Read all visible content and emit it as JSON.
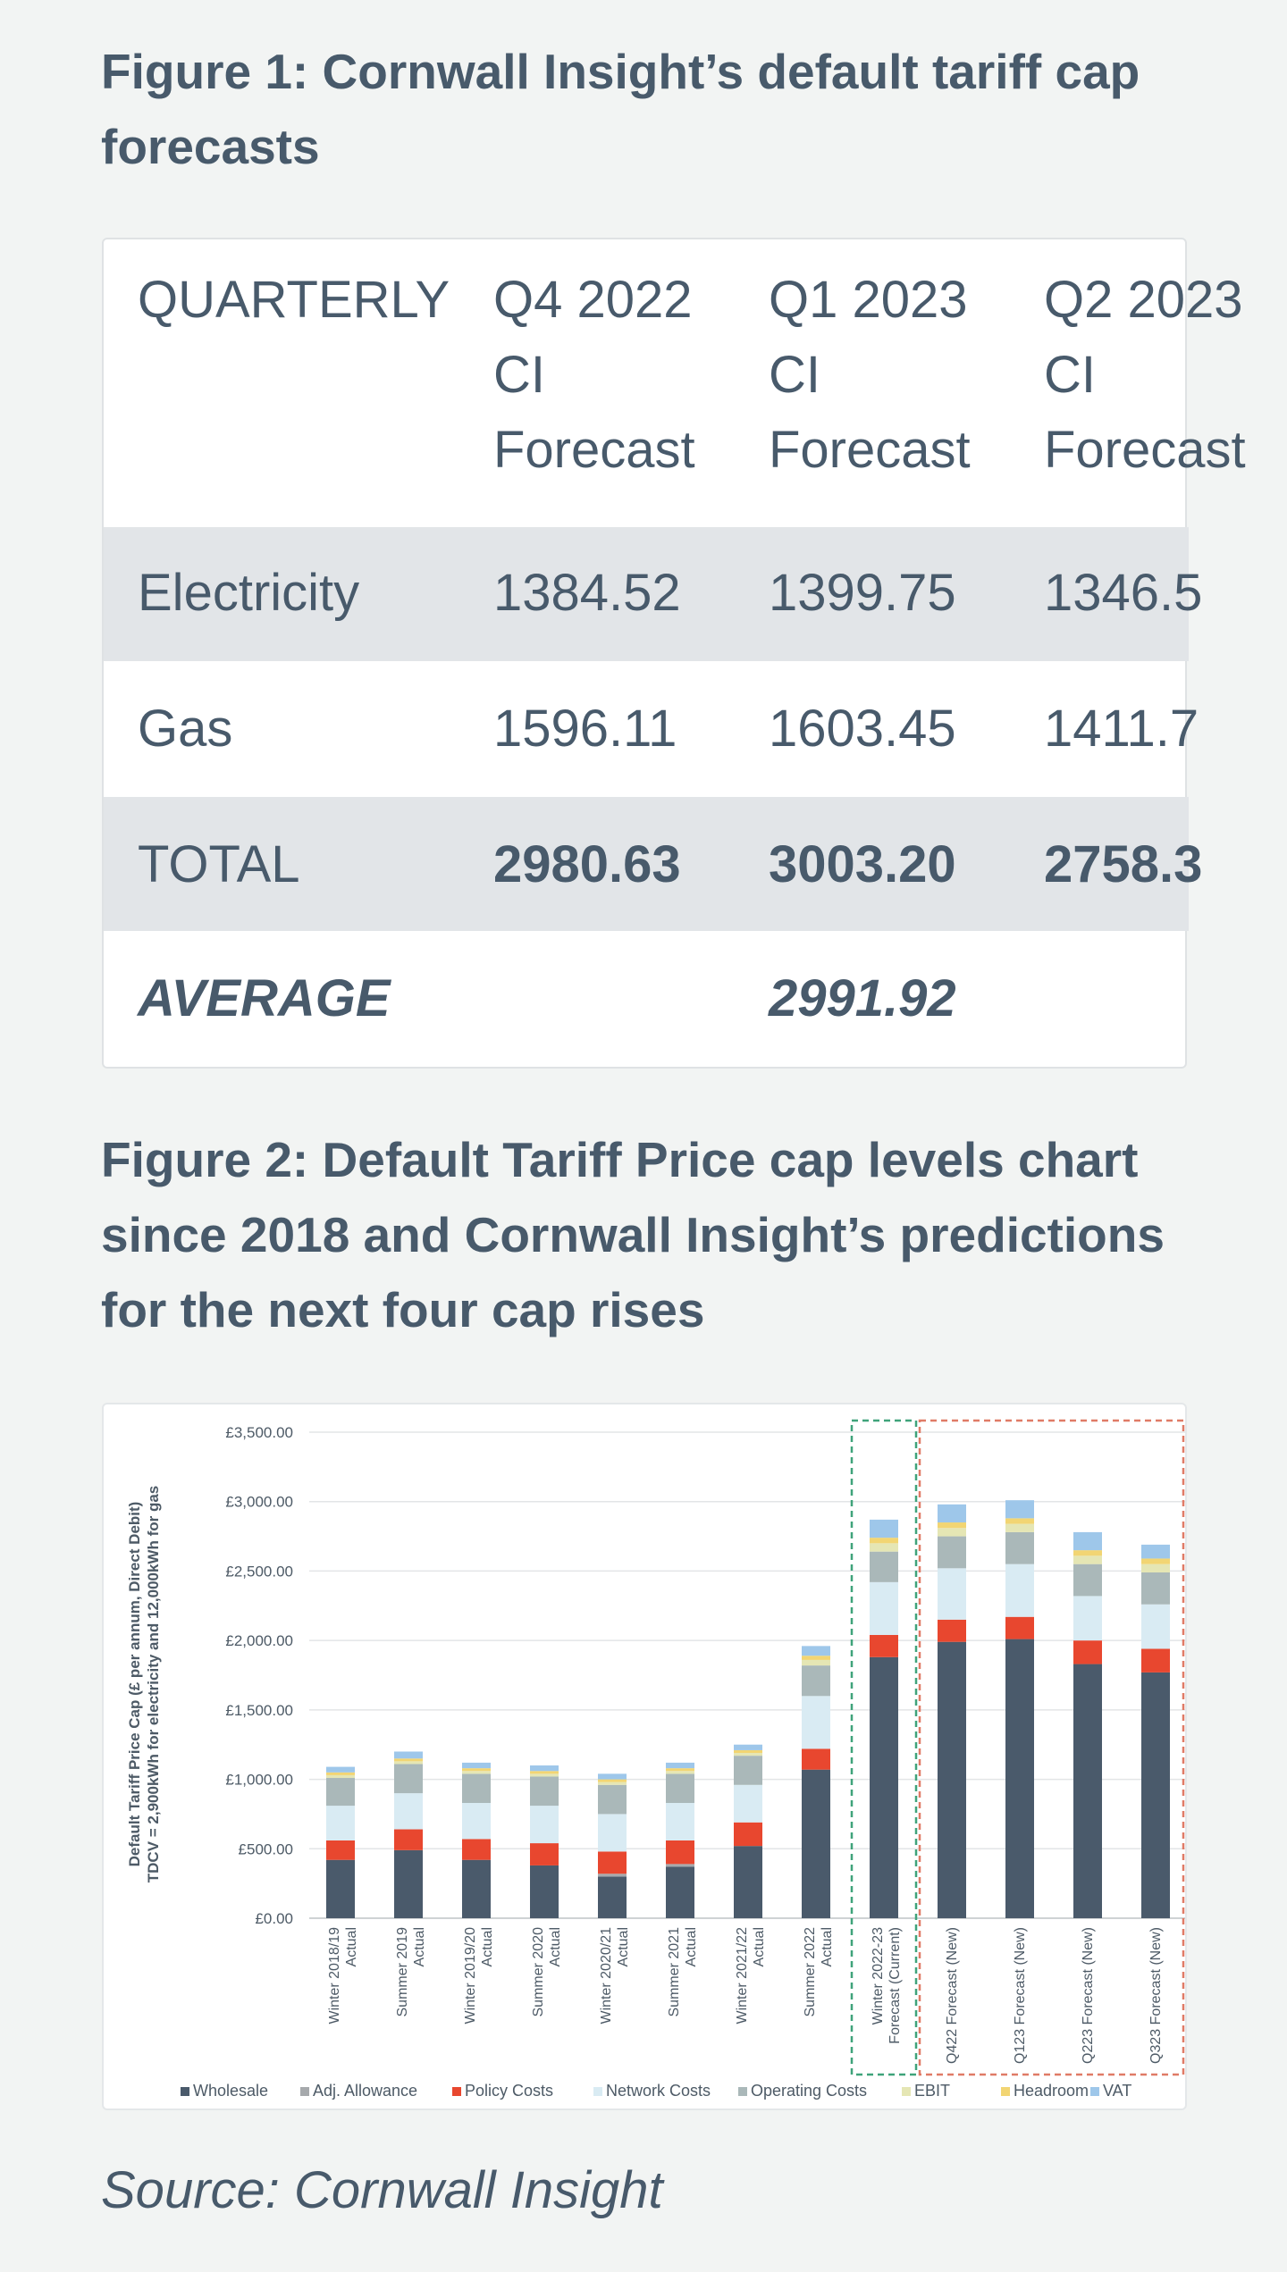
{
  "figure1": {
    "title": "Figure 1: Cornwall Insight’s default tariff cap forecasts",
    "table": {
      "header": [
        "QUARTERLY",
        "Q4 2022 CI Forecast",
        "Q1 2023 CI Forecast",
        "Q2 2023 CI Forecast"
      ],
      "rows": [
        [
          "Electricity",
          "1384.52",
          "1399.75",
          "1346.5"
        ],
        [
          "Gas",
          "1596.11",
          "1603.45",
          "1411.7"
        ],
        [
          "TOTAL",
          "2980.63",
          "3003.20",
          "2758.3"
        ]
      ],
      "average_label": "AVERAGE",
      "average_value": "2991.92"
    }
  },
  "figure2": {
    "title": "Figure 2: Default Tariff Price cap levels chart since 2018 and Cornwall Insight’s predictions for the next four cap rises"
  },
  "chart_data": {
    "type": "bar",
    "stacked": true,
    "ylabel": "Default Tariff Price Cap (£ per annum, Direct Debit) TDCV = 2,900kWh for electricity and 12,000kWh for gas",
    "ylim": [
      0,
      3500
    ],
    "yticks": [
      "£0.00",
      "£500.00",
      "£1,000.00",
      "£1,500.00",
      "£2,000.00",
      "£2,500.00",
      "£3,000.00",
      "£3,500.00"
    ],
    "categories": [
      "Winter 2018/19 Actual",
      "Summer 2019 Actual",
      "Winter 2019/20 Actual",
      "Summer 2020 Actual",
      "Winter 2020/21 Actual",
      "Summer 2021 Actual",
      "Winter 2021/22 Actual",
      "Summer 2022 Actual",
      "Winter 2022-23 Forecast (Current)",
      "Q422 Forecast (New)",
      "Q123 Forecast (New)",
      "Q223 Forecast (New)",
      "Q323 Forecast (New)"
    ],
    "series": [
      {
        "name": "Wholesale",
        "color": "#4a5a6b",
        "values": [
          420,
          490,
          420,
          380,
          300,
          370,
          520,
          1070,
          1880,
          1990,
          2010,
          1830,
          1770
        ]
      },
      {
        "name": "Adj. Allowance",
        "color": "#a6a9ac",
        "values": [
          0,
          0,
          0,
          0,
          20,
          20,
          0,
          0,
          0,
          0,
          0,
          0,
          0
        ]
      },
      {
        "name": "Policy Costs",
        "color": "#e8472f",
        "values": [
          140,
          150,
          150,
          160,
          160,
          170,
          170,
          150,
          160,
          160,
          160,
          170,
          170
        ]
      },
      {
        "name": "Network Costs",
        "color": "#d9ebf3",
        "values": [
          250,
          260,
          260,
          270,
          270,
          270,
          270,
          380,
          380,
          370,
          380,
          320,
          320
        ]
      },
      {
        "name": "Operating Costs",
        "color": "#aab8b9",
        "values": [
          200,
          210,
          210,
          210,
          210,
          210,
          210,
          220,
          220,
          230,
          230,
          230,
          230
        ]
      },
      {
        "name": "EBIT",
        "color": "#e5e6b4",
        "values": [
          20,
          20,
          20,
          20,
          20,
          20,
          20,
          40,
          60,
          60,
          60,
          60,
          60
        ]
      },
      {
        "name": "Headroom",
        "color": "#f2d573",
        "values": [
          20,
          20,
          20,
          20,
          20,
          20,
          20,
          30,
          40,
          40,
          40,
          40,
          40
        ]
      },
      {
        "name": "VAT",
        "color": "#9ec7ea",
        "values": [
          40,
          50,
          40,
          40,
          40,
          40,
          40,
          70,
          130,
          130,
          130,
          130,
          100
        ]
      }
    ],
    "legend_position": "bottom",
    "grid": true,
    "highlight_boxes": [
      {
        "color": "#3fa37a",
        "categories": [
          "Winter 2022-23 Forecast (Current)"
        ]
      },
      {
        "color": "#e07b67",
        "categories": [
          "Q422 Forecast (New)",
          "Q123 Forecast (New)",
          "Q223 Forecast (New)",
          "Q323 Forecast (New)"
        ]
      }
    ]
  },
  "source": "Source: Cornwall Insight"
}
